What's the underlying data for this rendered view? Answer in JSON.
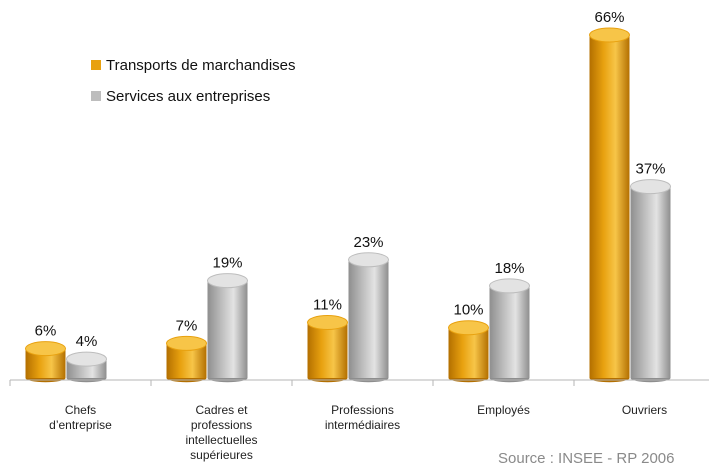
{
  "chart_data": {
    "type": "bar",
    "categories": [
      [
        "Chefs",
        "d’entreprise"
      ],
      [
        "Cadres et",
        "professions",
        "intellectuelles",
        "supérieures"
      ],
      [
        "Professions",
        "intermédiaires"
      ],
      [
        "Employés"
      ],
      [
        "Ouvriers"
      ]
    ],
    "series": [
      {
        "name": "Transports de marchandises",
        "values": [
          6,
          7,
          11,
          10,
          66
        ]
      },
      {
        "name": "Services aux entreprises",
        "values": [
          4,
          19,
          23,
          18,
          37
        ]
      }
    ],
    "value_suffix": "%",
    "ylim": [
      0,
      66
    ],
    "grid": false,
    "legend_position": "top-left",
    "colors": [
      "#E8A10F",
      "#BDBDBD"
    ],
    "colors_dark": [
      "#B36F00",
      "#8E8E8E"
    ],
    "colors_light": [
      "#F7C548",
      "#E3E3E3"
    ],
    "source": "Source : INSEE - RP 2006"
  }
}
